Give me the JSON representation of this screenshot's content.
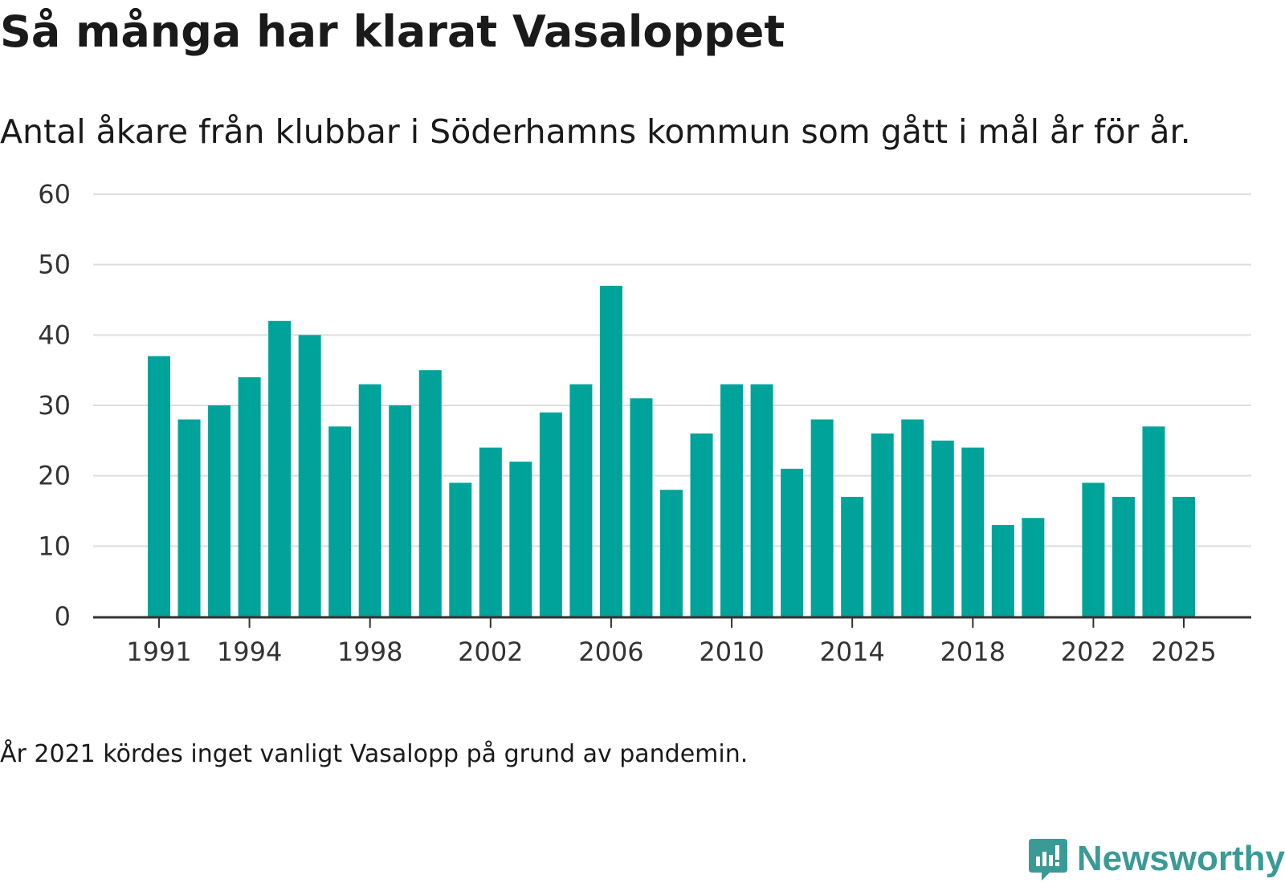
{
  "title": "Så många har klarat Vasaloppet",
  "subtitle": "Antal åkare från klubbar i Söderhamns kommun som gått i mål år för år.",
  "note": "År 2021 kördes inget vanligt Vasalopp på grund av pandemin.",
  "brand": {
    "name": "Newsworthy",
    "icon": "newsworthy-logo-icon",
    "color": "#3a9a96"
  },
  "colors": {
    "bar": "#00a39a",
    "grid": "#dddddd",
    "axis": "#333333"
  },
  "chart_data": {
    "type": "bar",
    "title": "Så många har klarat Vasaloppet",
    "xlabel": "",
    "ylabel": "",
    "categories": [
      1991,
      1992,
      1993,
      1994,
      1995,
      1996,
      1997,
      1998,
      1999,
      2000,
      2001,
      2002,
      2003,
      2004,
      2005,
      2006,
      2007,
      2008,
      2009,
      2010,
      2011,
      2012,
      2013,
      2014,
      2015,
      2016,
      2017,
      2018,
      2019,
      2020,
      2021,
      2022,
      2023,
      2024,
      2025
    ],
    "values": [
      37,
      28,
      30,
      34,
      42,
      40,
      27,
      33,
      30,
      35,
      19,
      24,
      22,
      29,
      33,
      47,
      31,
      18,
      26,
      33,
      33,
      21,
      28,
      17,
      26,
      28,
      25,
      24,
      13,
      14,
      null,
      19,
      17,
      27,
      17
    ],
    "x_ticks": [
      1991,
      1994,
      1998,
      2002,
      2006,
      2010,
      2014,
      2018,
      2022,
      2025
    ],
    "y_ticks": [
      0,
      10,
      20,
      30,
      40,
      50,
      60
    ],
    "ylim": [
      0,
      60
    ],
    "grid": true
  }
}
